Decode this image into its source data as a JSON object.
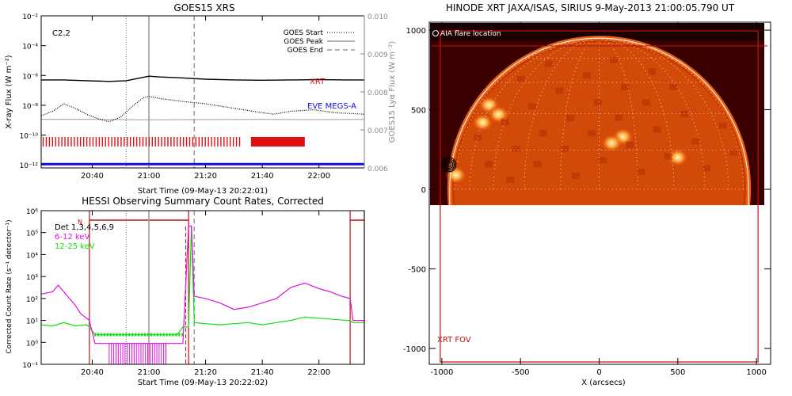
{
  "chart_data": [
    {
      "type": "line",
      "title": "GOES15 XRS",
      "class_label": "C2.2",
      "xlabel": "Start Time (09-May-13 20:22:01)",
      "ylabel": "X-ray Flux (W m⁻²)",
      "ylabel_right": "GOES15 Lyα Flux (W m⁻²)",
      "x_ticks": [
        "20:40",
        "21:00",
        "21:20",
        "21:40",
        "22:00"
      ],
      "x_tick_minutes": [
        40,
        60,
        80,
        100,
        120
      ],
      "xlim_minutes": [
        22,
        136
      ],
      "y_tick_labels": [
        "10⁻²",
        "10⁻⁴",
        "10⁻⁶",
        "10⁻⁸",
        "10⁻¹⁰",
        "10⁻¹²"
      ],
      "y_tick_exponents": [
        -2,
        -4,
        -6,
        -8,
        -10,
        -12
      ],
      "ylim_exponent": [
        -12.2,
        -2
      ],
      "right_ticks": [
        "0.010",
        "0.009",
        "0.008",
        "0.007",
        "0.006"
      ],
      "right_tick_values": [
        0.01,
        0.009,
        0.008,
        0.007,
        0.006
      ],
      "right_lim": [
        0.006,
        0.01
      ],
      "legend": [
        {
          "label": "GOES Start",
          "style": "dotted"
        },
        {
          "label": "GOES Peak",
          "style": "solid"
        },
        {
          "label": "GOES End",
          "style": "dashed"
        }
      ],
      "markers_minutes": {
        "start": 52,
        "peak": 60,
        "end": 76
      },
      "annotations": [
        {
          "label": "XRT",
          "color": "#e01010"
        },
        {
          "label": "EVE MEGS-A",
          "color": "#1010e0"
        }
      ],
      "series": [
        {
          "name": "XRT",
          "color": "#e01010",
          "intervals_minutes": [
            [
              22,
              92
            ],
            [
              96,
              115
            ]
          ]
        },
        {
          "name": "EVE MEGS-A",
          "color": "#1010e0",
          "level_exponent": -11.95
        },
        {
          "name": "",
          "color": "#000000",
          "x": [
            22,
            30,
            38,
            46,
            52,
            56,
            60,
            64,
            70,
            80,
            90,
            100,
            110,
            120,
            130,
            136
          ],
          "log_y": [
            -6.3,
            -6.3,
            -6.35,
            -6.4,
            -6.35,
            -6.2,
            -6.05,
            -6.1,
            -6.15,
            -6.25,
            -6.3,
            -6.32,
            -6.3,
            -6.28,
            -6.3,
            -6.3
          ]
        },
        {
          "name": "",
          "color": "#000000",
          "style": "dotted",
          "x": [
            22,
            26,
            30,
            34,
            38,
            42,
            46,
            50,
            54,
            58,
            60,
            64,
            70,
            80,
            90,
            100,
            104,
            110,
            118,
            126,
            136
          ],
          "log_y": [
            -8.7,
            -8.4,
            -7.9,
            -8.2,
            -8.6,
            -8.9,
            -9.1,
            -8.8,
            -8.1,
            -7.5,
            -7.4,
            -7.55,
            -7.7,
            -7.9,
            -8.2,
            -8.5,
            -8.6,
            -8.4,
            -8.3,
            -8.5,
            -8.6
          ]
        },
        {
          "name": "",
          "color": "#999999",
          "x": [
            22,
            40,
            60,
            80,
            100,
            120,
            136
          ],
          "log_y": [
            -8.95,
            -8.95,
            -8.97,
            -8.96,
            -8.95,
            -8.96,
            -8.95
          ]
        }
      ]
    },
    {
      "type": "line",
      "title": "HESSI Observing Summary Count Rates, Corrected",
      "xlabel": "Start Time (09-May-13 20:22:02)",
      "ylabel": "Corrected Count Rate (s⁻¹ detector⁻¹)",
      "x_ticks": [
        "20:40",
        "21:00",
        "21:20",
        "21:40",
        "22:00"
      ],
      "x_tick_minutes": [
        40,
        60,
        80,
        100,
        120
      ],
      "xlim_minutes": [
        22,
        136
      ],
      "y_tick_labels": [
        "10⁶",
        "10⁵",
        "10⁴",
        "10³",
        "10²",
        "10¹",
        "10⁰",
        "10⁻¹"
      ],
      "y_tick_exponents": [
        6,
        5,
        4,
        3,
        2,
        1,
        0,
        -1
      ],
      "ylim_exponent": [
        -1,
        6
      ],
      "legend": [
        {
          "label": "Det 1,3,4,5,6,9",
          "color": "#000000"
        },
        {
          "label": "6-12 keV",
          "color": "#e010e0"
        },
        {
          "label": "12-25 keV",
          "color": "#10e010"
        }
      ],
      "flag_label": "N",
      "night_minutes": [
        [
          39,
          74
        ],
        [
          131,
          136
        ]
      ],
      "markers_minutes": {
        "start": 52,
        "peak": 60,
        "end": 76
      },
      "series": [
        {
          "name": "6-12 keV",
          "color": "#e010e0",
          "x": [
            22,
            26,
            28,
            30,
            32,
            34,
            36,
            38,
            39,
            41,
            46,
            50,
            56,
            62,
            68,
            72,
            74,
            75,
            76,
            80,
            85,
            90,
            95,
            100,
            105,
            110,
            115,
            118,
            120,
            124,
            128,
            131,
            132,
            136
          ],
          "log_y": [
            2.2,
            2.3,
            2.6,
            2.3,
            2.0,
            1.7,
            1.3,
            1.1,
            1.0,
            -0.05,
            -0.05,
            -0.05,
            -0.05,
            -0.05,
            -0.05,
            -0.05,
            5.3,
            5.3,
            2.1,
            2.0,
            1.8,
            1.5,
            1.6,
            1.8,
            2.0,
            2.5,
            2.7,
            2.55,
            2.45,
            2.3,
            2.1,
            2.0,
            1.0,
            1.0
          ]
        },
        {
          "name": "12-25 keV",
          "color": "#10e010",
          "x": [
            22,
            26,
            30,
            34,
            38,
            39,
            41,
            46,
            52,
            58,
            64,
            70,
            72,
            74,
            75,
            76,
            80,
            85,
            90,
            95,
            100,
            105,
            110,
            115,
            120,
            125,
            130,
            131,
            132,
            136
          ],
          "log_y": [
            0.8,
            0.75,
            0.9,
            0.75,
            0.8,
            0.7,
            0.35,
            0.35,
            0.35,
            0.35,
            0.35,
            0.35,
            0.7,
            0.7,
            5.3,
            0.9,
            0.85,
            0.8,
            0.85,
            0.9,
            0.8,
            0.9,
            1.0,
            1.15,
            1.1,
            1.05,
            1.0,
            1.0,
            0.9,
            0.9
          ]
        }
      ]
    },
    {
      "type": "heatmap",
      "title": "HINODE XRT JAXA/ISAS, SIRIUS  9-May-2013 21:00:05.790 UT",
      "xlabel": "X (arcsecs)",
      "x_ticks": [
        "-1000",
        "-500",
        "0",
        "500",
        "1000"
      ],
      "x_tick_values": [
        -1000,
        -500,
        0,
        500,
        1000
      ],
      "y_ticks": [
        "1000",
        "500",
        "0",
        "-500",
        "-1000"
      ],
      "y_tick_values": [
        1000,
        500,
        0,
        -500,
        -1000
      ],
      "xlim": [
        -1080,
        1090
      ],
      "ylim": [
        -1100,
        1050
      ],
      "image_extent": {
        "x": [
          -1000,
          1000
        ],
        "y": [
          -100,
          1000
        ]
      },
      "solar_radius_arcsec": 950,
      "flare_location": {
        "x": -955,
        "y": 155
      },
      "active_regions": [
        {
          "x": -700,
          "y": 530
        },
        {
          "x": -740,
          "y": 420
        },
        {
          "x": -640,
          "y": 470
        },
        {
          "x": -910,
          "y": 90
        },
        {
          "x": 150,
          "y": 330
        },
        {
          "x": 80,
          "y": 290
        },
        {
          "x": 500,
          "y": 200
        }
      ],
      "legend_label": "AIA flare location",
      "fov_label": "XRT FOV",
      "fov_color": "#c01010"
    }
  ]
}
